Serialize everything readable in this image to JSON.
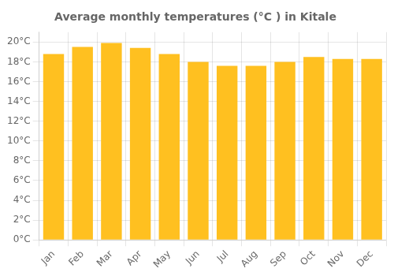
{
  "chart_data": {
    "type": "bar",
    "title": "Average monthly temperatures (°C ) in Kitale",
    "categories": [
      "Jan",
      "Feb",
      "Mar",
      "Apr",
      "May",
      "Jun",
      "Jul",
      "Aug",
      "Sep",
      "Oct",
      "Nov",
      "Dec"
    ],
    "values": [
      18.8,
      19.5,
      19.9,
      19.4,
      18.8,
      18.0,
      17.6,
      17.6,
      18.0,
      18.5,
      18.3,
      18.3
    ],
    "color": "#FFC020",
    "ylim": [
      0,
      21
    ],
    "yticks": [
      {
        "value": 0,
        "label": "0°C"
      },
      {
        "value": 2,
        "label": "2°C"
      },
      {
        "value": 4,
        "label": "4°C"
      },
      {
        "value": 6,
        "label": "6°C"
      },
      {
        "value": 8,
        "label": "8°C"
      },
      {
        "value": 10,
        "label": "10°C"
      },
      {
        "value": 12,
        "label": "12°C"
      },
      {
        "value": 14,
        "label": "14°C"
      },
      {
        "value": 16,
        "label": "16°C"
      },
      {
        "value": 18,
        "label": "18°C"
      },
      {
        "value": 20,
        "label": "20°C"
      }
    ],
    "grid": true
  }
}
